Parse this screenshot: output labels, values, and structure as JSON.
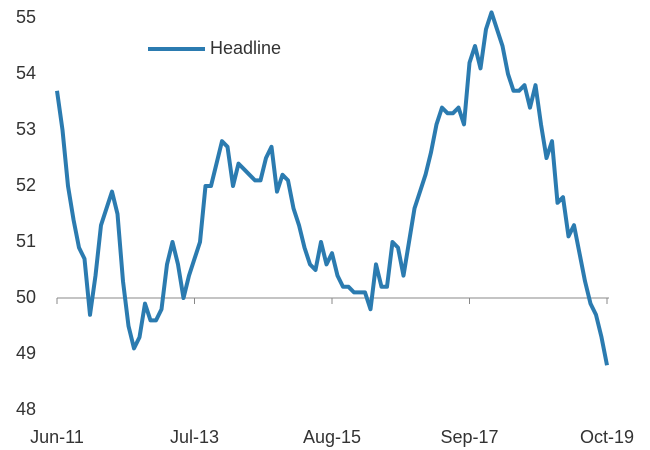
{
  "chart_data": {
    "type": "line",
    "categories": [
      "Jun-11",
      null,
      null,
      null,
      null,
      null,
      null,
      null,
      null,
      null,
      null,
      null,
      null,
      null,
      null,
      null,
      null,
      null,
      null,
      null,
      null,
      null,
      null,
      null,
      null,
      "Jul-13",
      null,
      null,
      null,
      null,
      null,
      null,
      null,
      null,
      null,
      null,
      null,
      null,
      null,
      null,
      null,
      null,
      null,
      null,
      null,
      null,
      null,
      null,
      null,
      null,
      "Aug-15",
      null,
      null,
      null,
      null,
      null,
      null,
      null,
      null,
      null,
      null,
      null,
      null,
      null,
      null,
      null,
      null,
      null,
      null,
      null,
      null,
      null,
      null,
      null,
      null,
      "Sep-17",
      null,
      null,
      null,
      null,
      null,
      null,
      null,
      null,
      null,
      null,
      null,
      null,
      null,
      null,
      null,
      null,
      null,
      null,
      null,
      null,
      null,
      null,
      null,
      null,
      "Oct-19"
    ],
    "series": [
      {
        "name": "Headline",
        "color": "#2b7bb0",
        "values": [
          53.7,
          53.0,
          52.0,
          51.4,
          50.9,
          50.7,
          49.7,
          50.4,
          51.3,
          51.6,
          51.9,
          51.5,
          50.3,
          49.5,
          49.1,
          49.3,
          49.9,
          49.6,
          49.6,
          49.8,
          50.6,
          51.0,
          50.6,
          50.0,
          50.4,
          50.7,
          51.0,
          52.0,
          52.0,
          52.4,
          52.8,
          52.7,
          52.0,
          52.4,
          52.3,
          52.2,
          52.1,
          52.1,
          52.5,
          52.7,
          51.9,
          52.2,
          52.1,
          51.6,
          51.3,
          50.9,
          50.6,
          50.5,
          51.0,
          50.6,
          50.8,
          50.4,
          50.2,
          50.2,
          50.1,
          50.1,
          50.1,
          49.8,
          50.6,
          50.2,
          50.2,
          51.0,
          50.9,
          50.4,
          51.0,
          51.6,
          51.9,
          52.2,
          52.6,
          53.1,
          53.4,
          53.3,
          53.3,
          53.4,
          53.1,
          54.2,
          54.5,
          54.1,
          54.8,
          55.1,
          54.8,
          54.5,
          54.0,
          53.7,
          53.7,
          53.8,
          53.4,
          53.8,
          53.1,
          52.5,
          52.8,
          51.7,
          51.8,
          51.1,
          51.3,
          50.8,
          50.3,
          49.9,
          49.7,
          49.3,
          48.8
        ]
      }
    ],
    "ylim": [
      48,
      55
    ],
    "yticks": [
      48,
      49,
      50,
      51,
      52,
      53,
      54,
      55
    ],
    "xaxis_crosses": 50,
    "grid": false,
    "legend": "top-left"
  }
}
